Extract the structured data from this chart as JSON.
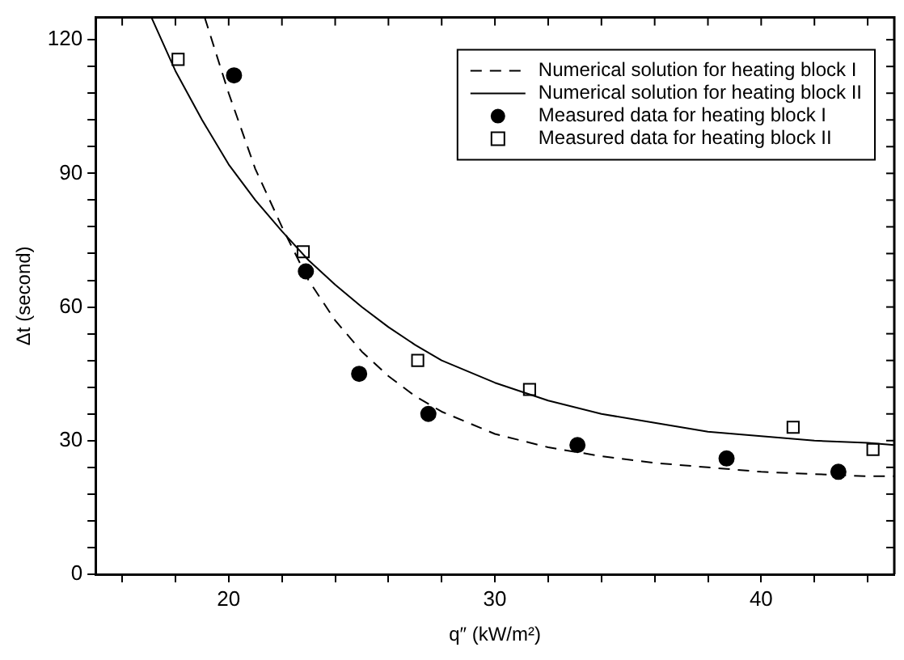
{
  "chart_data": {
    "type": "line",
    "xlabel": "q″ (kW/m²)",
    "ylabel": "Δt (second)",
    "xlim": [
      15,
      45
    ],
    "ylim": [
      0,
      125
    ],
    "xticks": [
      {
        "value": 16,
        "label": null
      },
      {
        "value": 18,
        "label": null
      },
      20,
      {
        "value": 22,
        "label": null
      },
      {
        "value": 24,
        "label": null
      },
      {
        "value": 26,
        "label": null
      },
      {
        "value": 28,
        "label": null
      },
      30,
      {
        "value": 32,
        "label": null
      },
      {
        "value": 34,
        "label": null
      },
      {
        "value": 36,
        "label": null
      },
      {
        "value": 38,
        "label": null
      },
      40,
      {
        "value": 42,
        "label": null
      },
      {
        "value": 44,
        "label": null
      }
    ],
    "yticks": [
      0,
      {
        "value": 6,
        "label": null
      },
      {
        "value": 12,
        "label": null
      },
      {
        "value": 18,
        "label": null
      },
      {
        "value": 24,
        "label": null
      },
      30,
      {
        "value": 36,
        "label": null
      },
      {
        "value": 42,
        "label": null
      },
      {
        "value": 48,
        "label": null
      },
      {
        "value": 54,
        "label": null
      },
      60,
      {
        "value": 66,
        "label": null
      },
      {
        "value": 72,
        "label": null
      },
      {
        "value": 78,
        "label": null
      },
      {
        "value": 84,
        "label": null
      },
      90,
      {
        "value": 96,
        "label": null
      },
      {
        "value": 102,
        "label": null
      },
      {
        "value": 108,
        "label": null
      },
      {
        "value": 114,
        "label": null
      },
      120
    ],
    "grid": false,
    "legend": "top right",
    "series": [
      {
        "name": "Numerical solution for heating block I",
        "line_style": "dashed",
        "marker": "none",
        "color": "#000000",
        "x": [
          19.1,
          20,
          21,
          22,
          23,
          24,
          25,
          26,
          27,
          28,
          30,
          32,
          34,
          36,
          38,
          40,
          42,
          44,
          45
        ],
        "values": [
          125,
          108,
          91,
          78,
          66,
          57,
          50,
          44.5,
          40,
          36.5,
          31.5,
          28.5,
          26.5,
          25,
          24,
          23,
          22.5,
          22,
          22
        ]
      },
      {
        "name": "Numerical solution for heating block II",
        "line_style": "solid",
        "marker": "none",
        "color": "#000000",
        "x": [
          17.1,
          18,
          19,
          20,
          21,
          22,
          23,
          24,
          25,
          26,
          27,
          28,
          30,
          32,
          34,
          36,
          38,
          40,
          42,
          44,
          45
        ],
        "values": [
          125,
          113,
          102,
          92,
          84,
          77,
          70.5,
          65,
          60,
          55.5,
          51.5,
          48,
          43,
          39,
          36,
          34,
          32,
          31,
          30,
          29.5,
          29
        ]
      },
      {
        "name": "Measured data for heating block I",
        "type": "scatter",
        "marker": "circle",
        "color": "#000000",
        "x": [
          20.2,
          22.9,
          24.9,
          27.5,
          33.1,
          38.7,
          42.9
        ],
        "values": [
          112,
          68,
          45,
          36,
          29,
          26,
          23
        ]
      },
      {
        "name": "Measured data for heating block II",
        "type": "scatter",
        "marker": "square",
        "color": "#000000",
        "x": [
          18.1,
          22.8,
          27.1,
          31.3,
          41.2,
          44.2
        ],
        "values": [
          115.6,
          72.4,
          48,
          41.5,
          33,
          28
        ]
      }
    ]
  }
}
